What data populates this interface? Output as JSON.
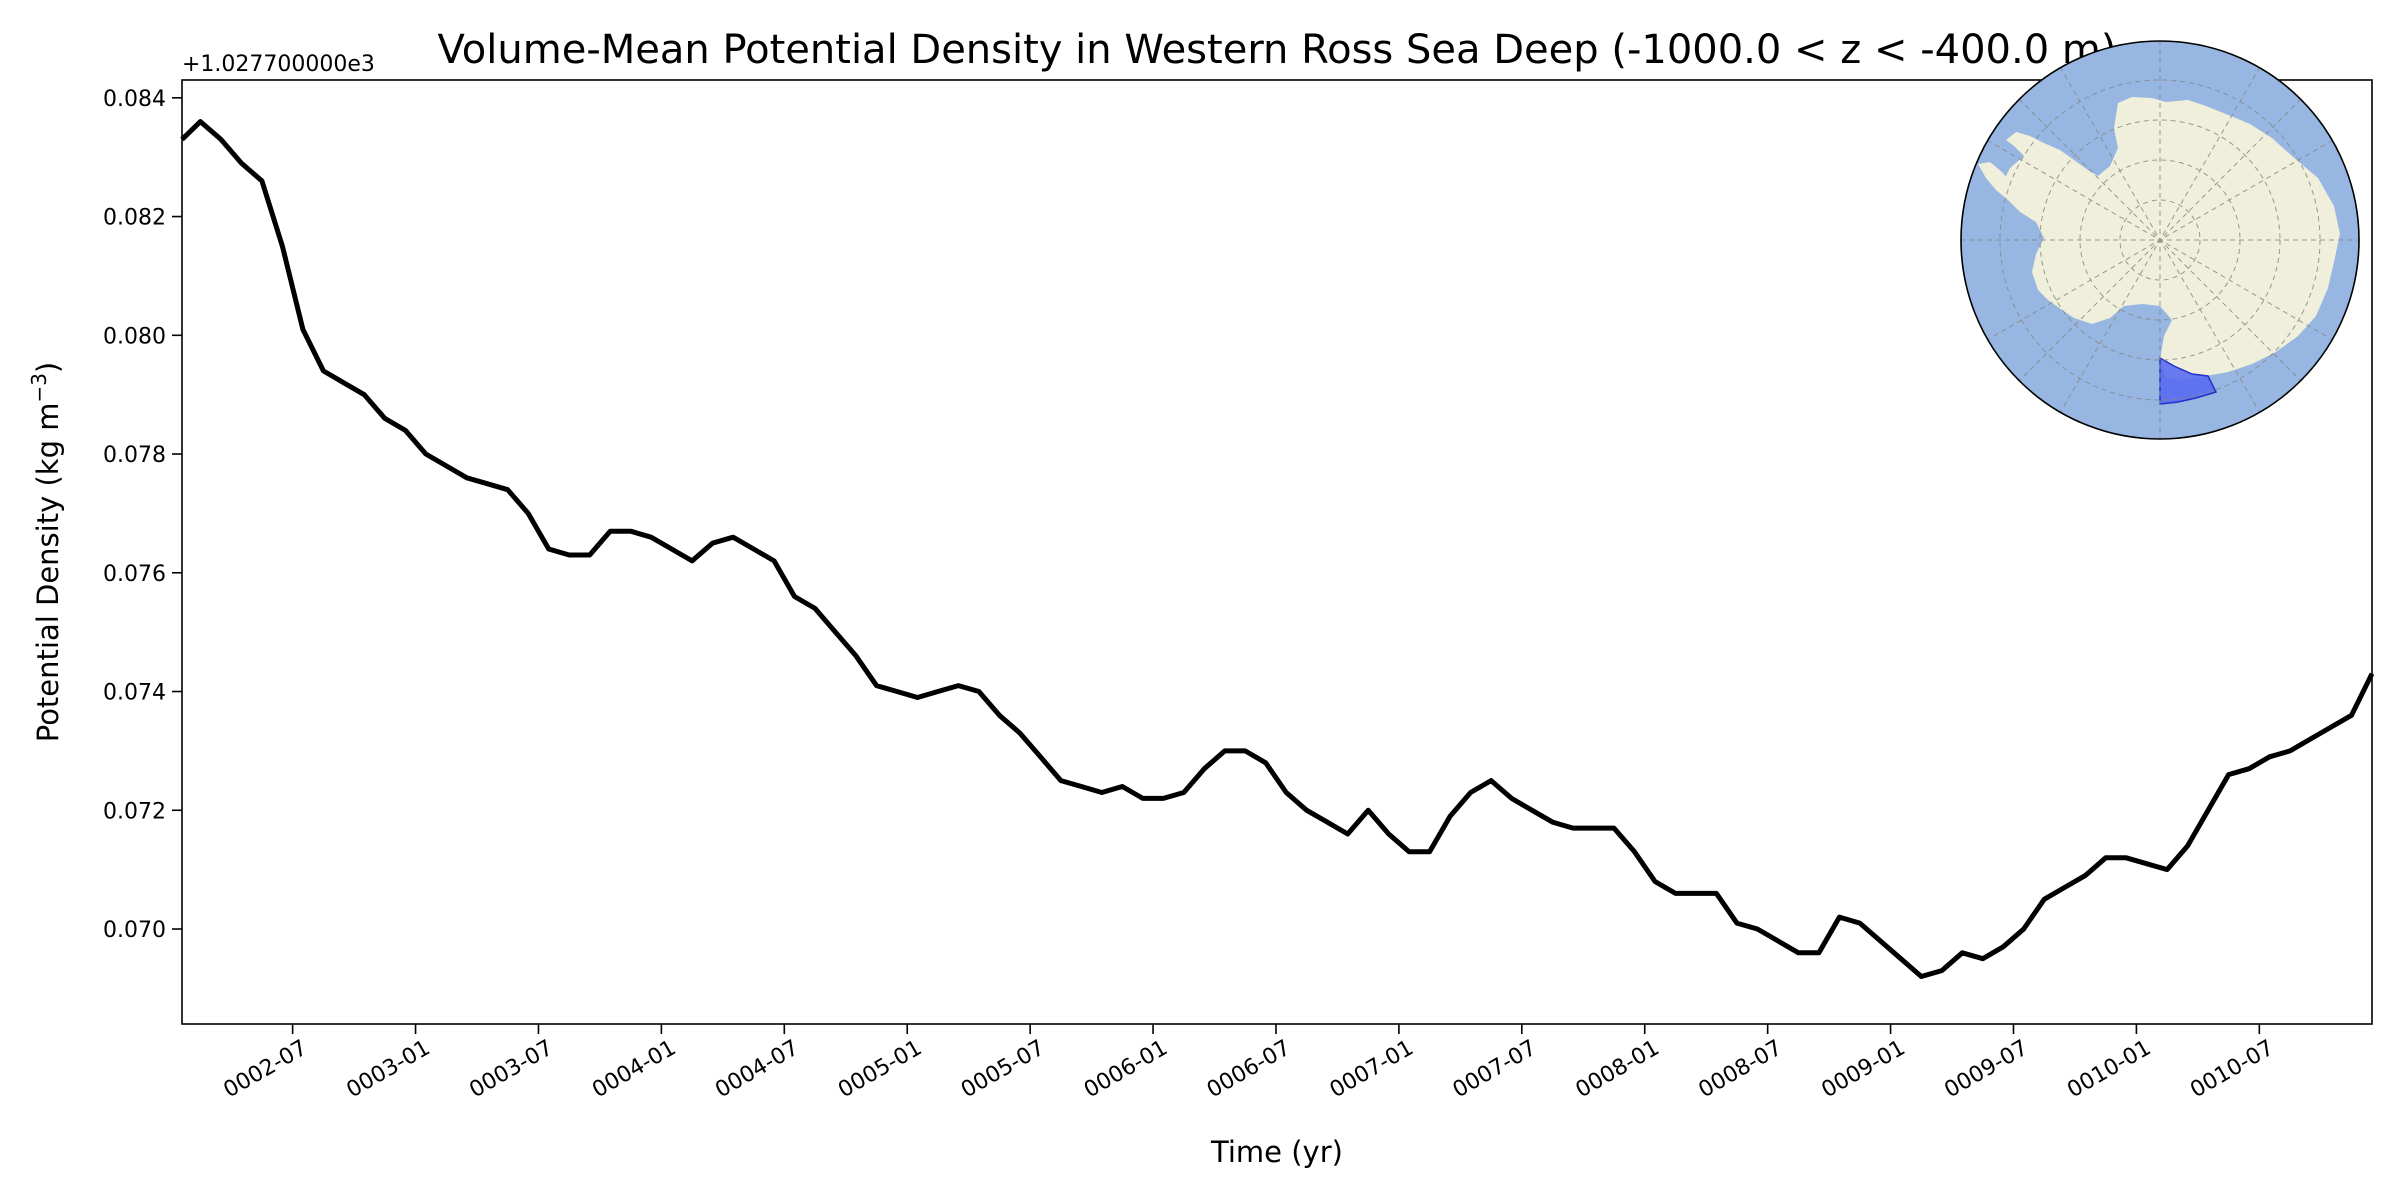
{
  "chart_data": {
    "type": "line",
    "title": "Volume-Mean Potential Density in Western Ross Sea Deep (-1000.0 < z < -400.0 m)",
    "xlabel": "Time (yr)",
    "ylabel_main": "Potential Density (kg m",
    "ylabel_sup": "−3",
    "ylabel_close": ")",
    "y_offset_text": "+1.027700000e3",
    "x_tick_labels": [
      "0002-07",
      "0003-01",
      "0003-07",
      "0004-01",
      "0004-07",
      "0005-01",
      "0005-07",
      "0006-01",
      "0006-07",
      "0007-01",
      "0007-07",
      "0008-01",
      "0008-07",
      "0009-01",
      "0009-07",
      "0010-01",
      "0010-07"
    ],
    "x_tick_months": [
      6,
      12,
      18,
      24,
      30,
      36,
      42,
      48,
      54,
      60,
      66,
      72,
      78,
      84,
      90,
      96,
      102
    ],
    "x_range_months": [
      0.6,
      107.5
    ],
    "y_tick_labels": [
      "0.070",
      "0.072",
      "0.074",
      "0.076",
      "0.078",
      "0.080",
      "0.082",
      "0.084"
    ],
    "y_tick_values": [
      0.07,
      0.072,
      0.074,
      0.076,
      0.078,
      0.08,
      0.082,
      0.084
    ],
    "ylim": [
      0.0684,
      0.0843
    ],
    "grid": false,
    "line_color": "#000000",
    "series": [
      {
        "x_months": [
          0.6,
          1.5,
          2.5,
          3.5,
          4.5,
          5.5,
          6.5,
          7.5,
          8.5,
          9.5,
          10.5,
          11.5,
          12.5,
          13.5,
          14.5,
          15.5,
          16.5,
          17.5,
          18.5,
          19.5,
          20.5,
          21.5,
          22.5,
          23.5,
          24.5,
          25.5,
          26.5,
          27.5,
          28.5,
          29.5,
          30.5,
          31.5,
          32.5,
          33.5,
          34.5,
          35.5,
          36.5,
          37.5,
          38.5,
          39.5,
          40.5,
          41.5,
          42.5,
          43.5,
          44.5,
          45.5,
          46.5,
          47.5,
          48.5,
          49.5,
          50.5,
          51.5,
          52.5,
          53.5,
          54.5,
          55.5,
          56.5,
          57.5,
          58.5,
          59.5,
          60.5,
          61.5,
          62.5,
          63.5,
          64.5,
          65.5,
          66.5,
          67.5,
          68.5,
          69.5,
          70.5,
          71.5,
          72.5,
          73.5,
          74.5,
          75.5,
          76.5,
          77.5,
          78.5,
          79.5,
          80.5,
          81.5,
          82.5,
          83.5,
          84.5,
          85.5,
          86.5,
          87.5,
          88.5,
          89.5,
          90.5,
          91.5,
          92.5,
          93.5,
          94.5,
          95.5,
          96.5,
          97.5,
          98.5,
          99.5,
          100.5,
          101.5,
          102.5,
          103.5,
          104.5,
          105.5,
          106.5,
          107.5
        ],
        "values": [
          0.0833,
          0.0836,
          0.0833,
          0.0829,
          0.0826,
          0.0815,
          0.0801,
          0.0794,
          0.0792,
          0.079,
          0.0786,
          0.0784,
          0.078,
          0.0778,
          0.0776,
          0.0775,
          0.0774,
          0.077,
          0.0764,
          0.0763,
          0.0763,
          0.0767,
          0.0767,
          0.0766,
          0.0764,
          0.0762,
          0.0765,
          0.0766,
          0.0764,
          0.0762,
          0.0756,
          0.0754,
          0.075,
          0.0746,
          0.0741,
          0.074,
          0.0739,
          0.074,
          0.0741,
          0.074,
          0.0736,
          0.0733,
          0.0729,
          0.0725,
          0.0724,
          0.0723,
          0.0724,
          0.0722,
          0.0722,
          0.0723,
          0.0727,
          0.073,
          0.073,
          0.0728,
          0.0723,
          0.072,
          0.0718,
          0.0716,
          0.072,
          0.0716,
          0.0713,
          0.0713,
          0.0719,
          0.0723,
          0.0725,
          0.0722,
          0.072,
          0.0718,
          0.0717,
          0.0717,
          0.0717,
          0.0713,
          0.0708,
          0.0706,
          0.0706,
          0.0706,
          0.0701,
          0.07,
          0.0698,
          0.0696,
          0.0696,
          0.0702,
          0.0701,
          0.0698,
          0.0695,
          0.0692,
          0.0693,
          0.0696,
          0.0695,
          0.0697,
          0.07,
          0.0705,
          0.0707,
          0.0709,
          0.0712,
          0.0712,
          0.0711,
          0.071,
          0.0714,
          0.072,
          0.0726,
          0.0727,
          0.0729,
          0.073,
          0.0732,
          0.0734,
          0.0736,
          0.0743
        ]
      }
    ],
    "inset_map": {
      "type": "south-polar-projection",
      "ocean_color": "#97b6e1",
      "land_color": "#efefdb",
      "region_color": "#5a6cf0",
      "gridlines": "dashed"
    }
  }
}
